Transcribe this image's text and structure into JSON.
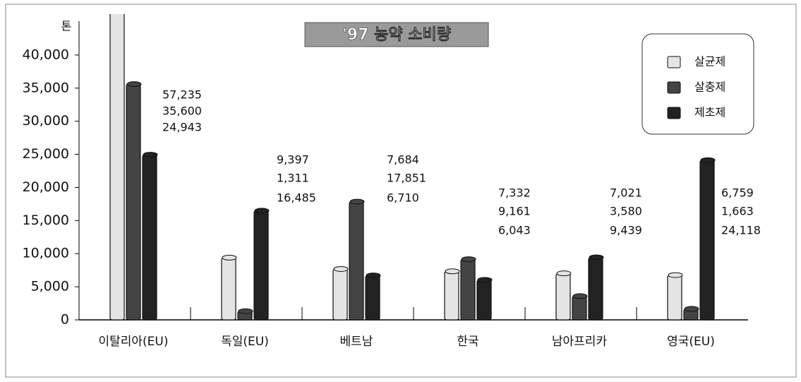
{
  "chart_data": {
    "type": "bar",
    "title": "'97 농약 소비량",
    "y_label": "톤",
    "categories": [
      "이탈리아(EU)",
      "독일(EU)",
      "베트남",
      "한국",
      "남아프리카",
      "영국(EU)"
    ],
    "series": [
      {
        "name": "살균제",
        "color": "#e4e4e4",
        "values": [
          57235,
          9397,
          7684,
          7332,
          7021,
          6759
        ],
        "value_labels": [
          "57,235",
          "9,397",
          "7,684",
          "7,332",
          "7,021",
          "6,759"
        ]
      },
      {
        "name": "살충제",
        "color": "#444444",
        "values": [
          35600,
          1311,
          17851,
          9161,
          3580,
          1663
        ],
        "value_labels": [
          "35,600",
          "1,311",
          "17,851",
          "9,161",
          "3,580",
          "1,663"
        ]
      },
      {
        "name": "제초제",
        "color": "#222222",
        "values": [
          24943,
          16485,
          6710,
          6043,
          9439,
          24118
        ],
        "value_labels": [
          "24,943",
          "16,485",
          "6,710",
          "6,043",
          "9,439",
          "24,118"
        ]
      }
    ],
    "ylim": [
      0,
      45000
    ],
    "yticks": [
      0,
      {
        "value": 5000,
        "label": "5,000"
      },
      {
        "value": 10000,
        "label": "10,000"
      },
      {
        "value": 15000,
        "label": "15,000"
      },
      {
        "value": 20000,
        "label": "20,000"
      },
      {
        "value": 25000,
        "label": "25,000"
      },
      {
        "value": 30000,
        "label": "30,000"
      },
      {
        "value": 35000,
        "label": "35,000"
      },
      {
        "value": 40000,
        "label": "40,000"
      }
    ],
    "legend": "top-right"
  }
}
